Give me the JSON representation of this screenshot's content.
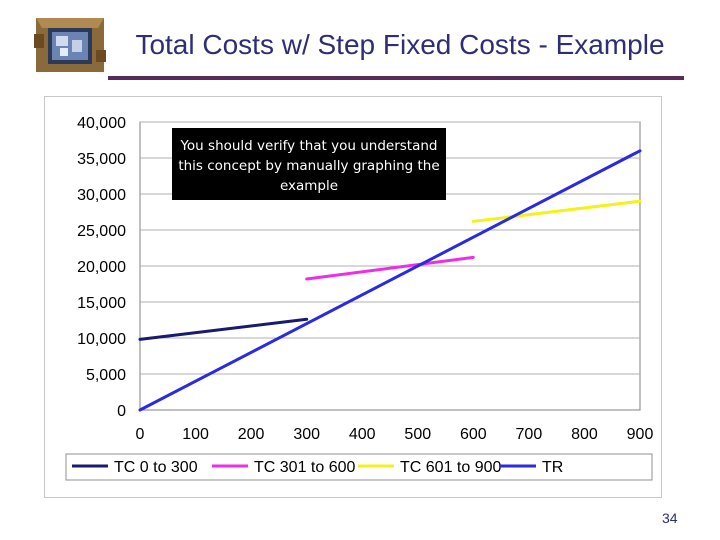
{
  "slide": {
    "title": "Total Costs w/ Step Fixed Costs - Example",
    "callout_text": "You should verify that you understand this concept by manually graphing the example",
    "page_number": "34"
  },
  "chart_data": {
    "type": "line",
    "title": "",
    "xlabel": "",
    "ylabel": "",
    "xlim": [
      0,
      900
    ],
    "ylim": [
      0,
      40000
    ],
    "x_ticks": [
      0,
      100,
      200,
      300,
      400,
      500,
      600,
      700,
      800,
      900
    ],
    "y_ticks": [
      0,
      5000,
      10000,
      15000,
      20000,
      25000,
      30000,
      35000,
      40000
    ],
    "x_tick_labels": [
      "0",
      "100",
      "200",
      "300",
      "400",
      "500",
      "600",
      "700",
      "800",
      "900"
    ],
    "y_tick_labels": [
      "0",
      "5,000",
      "10,000",
      "15,000",
      "20,000",
      "25,000",
      "30,000",
      "35,000",
      "40,000"
    ],
    "grid": "horizontal",
    "legend_position": "bottom",
    "series": [
      {
        "name": "TC 0 to 300",
        "color": "#1a1a6e",
        "points": [
          [
            0,
            9800
          ],
          [
            300,
            12600
          ]
        ]
      },
      {
        "name": "TC 301 to 600",
        "color": "#ee2ee6",
        "points": [
          [
            300,
            18200
          ],
          [
            600,
            21200
          ]
        ]
      },
      {
        "name": "TC 601 to 900",
        "color": "#f2f21e",
        "points": [
          [
            600,
            26200
          ],
          [
            900,
            29000
          ]
        ]
      },
      {
        "name": "TR",
        "color": "#2a2ae0",
        "points": [
          [
            0,
            0
          ],
          [
            900,
            36000
          ]
        ]
      }
    ]
  }
}
